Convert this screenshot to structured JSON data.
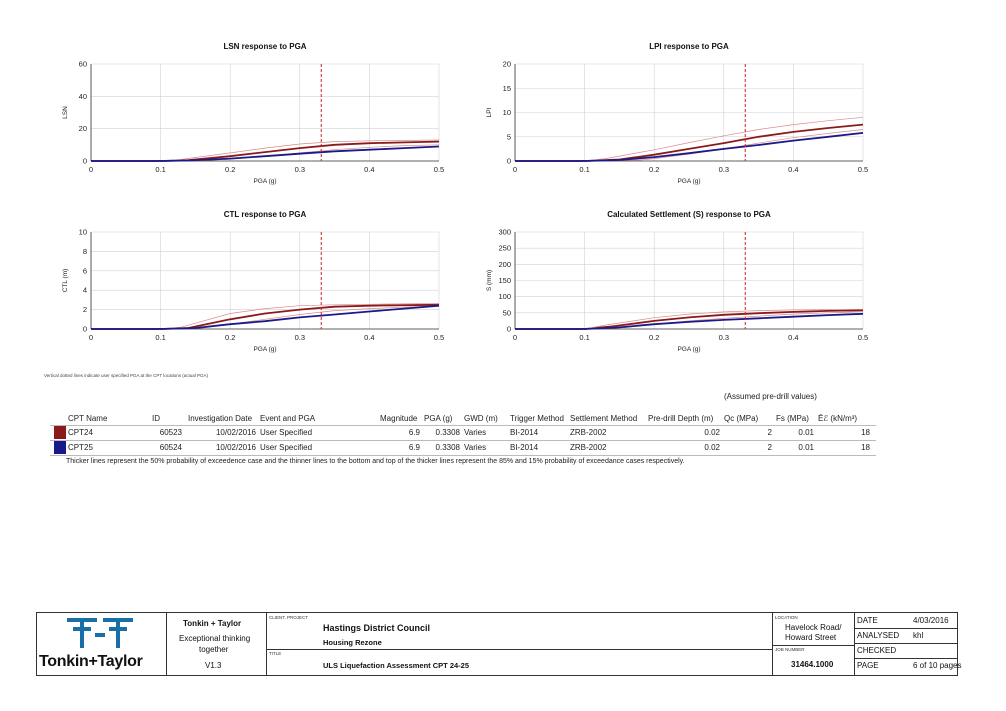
{
  "chart_data": [
    {
      "type": "line",
      "title": "LSN response to PGA",
      "xlabel": "PGA (g)",
      "ylabel": "LSN",
      "xlim": [
        0,
        0.5
      ],
      "ylim": [
        0,
        60
      ],
      "xticks": [
        "0",
        "0.1",
        "0.2",
        "0.3",
        "0.4",
        "0.5"
      ],
      "yticks": [
        "0",
        "20",
        "40",
        "60"
      ],
      "ref_x": 0.3308,
      "series": [
        {
          "color": "#8b1a1a",
          "width": 1.8,
          "x": [
            0,
            0.1,
            0.14,
            0.2,
            0.25,
            0.3,
            0.35,
            0.4,
            0.45,
            0.5
          ],
          "y": [
            0,
            0,
            0.5,
            3,
            5.5,
            8,
            10,
            11,
            11.5,
            12
          ]
        },
        {
          "color": "#d88a8a",
          "width": 0.7,
          "x": [
            0,
            0.1,
            0.13,
            0.2,
            0.25,
            0.3,
            0.35,
            0.4,
            0.45,
            0.5
          ],
          "y": [
            0,
            0,
            1,
            5,
            8,
            10.5,
            12,
            12.5,
            12.7,
            13
          ]
        },
        {
          "color": "#d88a8a",
          "width": 0.7,
          "x": [
            0,
            0.1,
            0.16,
            0.2,
            0.25,
            0.3,
            0.35,
            0.4,
            0.45,
            0.5
          ],
          "y": [
            0,
            0,
            0.3,
            1.2,
            3,
            5,
            7,
            8.5,
            9.5,
            10
          ]
        },
        {
          "color": "#1a1a8b",
          "width": 1.8,
          "x": [
            0,
            0.1,
            0.14,
            0.2,
            0.25,
            0.3,
            0.35,
            0.4,
            0.45,
            0.5
          ],
          "y": [
            0,
            0,
            0.3,
            1.5,
            3,
            4.5,
            6,
            7,
            8,
            9
          ]
        }
      ]
    },
    {
      "type": "line",
      "title": "LPI response to PGA",
      "xlabel": "PGA (g)",
      "ylabel": "LPI",
      "xlim": [
        0,
        0.5
      ],
      "ylim": [
        0,
        20
      ],
      "xticks": [
        "0",
        "0.1",
        "0.2",
        "0.3",
        "0.4",
        "0.5"
      ],
      "yticks": [
        "0",
        "5",
        "10",
        "15",
        "20"
      ],
      "ref_x": 0.3308,
      "series": [
        {
          "color": "#8b1a1a",
          "width": 1.8,
          "x": [
            0,
            0.1,
            0.15,
            0.2,
            0.25,
            0.3,
            0.35,
            0.4,
            0.45,
            0.5
          ],
          "y": [
            0,
            0,
            0.3,
            1.3,
            2.5,
            3.7,
            5,
            6,
            6.8,
            7.5
          ]
        },
        {
          "color": "#d88a8a",
          "width": 0.7,
          "x": [
            0,
            0.1,
            0.13,
            0.2,
            0.25,
            0.3,
            0.35,
            0.4,
            0.45,
            0.5
          ],
          "y": [
            0,
            0,
            0.5,
            2.3,
            3.8,
            5.2,
            6.5,
            7.5,
            8.3,
            9
          ]
        },
        {
          "color": "#d88a8a",
          "width": 0.7,
          "x": [
            0,
            0.1,
            0.18,
            0.2,
            0.25,
            0.3,
            0.35,
            0.4,
            0.45,
            0.5
          ],
          "y": [
            0,
            0,
            0.2,
            0.5,
            1.4,
            2.5,
            3.7,
            4.8,
            5.7,
            6.5
          ]
        },
        {
          "color": "#1a1a8b",
          "width": 1.8,
          "x": [
            0,
            0.1,
            0.15,
            0.2,
            0.25,
            0.3,
            0.35,
            0.4,
            0.45,
            0.5
          ],
          "y": [
            0,
            0,
            0.2,
            0.8,
            1.6,
            2.5,
            3.3,
            4.2,
            5,
            5.8
          ]
        }
      ]
    },
    {
      "type": "line",
      "title": "CTL response to PGA",
      "xlabel": "PGA (g)",
      "ylabel": "CTL (m)",
      "xlim": [
        0,
        0.5
      ],
      "ylim": [
        0,
        10
      ],
      "xticks": [
        "0",
        "0.1",
        "0.2",
        "0.3",
        "0.4",
        "0.5"
      ],
      "yticks": [
        "0",
        "2",
        "4",
        "6",
        "8",
        "10"
      ],
      "ref_x": 0.3308,
      "series": [
        {
          "color": "#8b1a1a",
          "width": 1.8,
          "x": [
            0,
            0.1,
            0.14,
            0.2,
            0.25,
            0.3,
            0.35,
            0.4,
            0.45,
            0.5
          ],
          "y": [
            0,
            0,
            0.1,
            1,
            1.6,
            2,
            2.3,
            2.4,
            2.45,
            2.5
          ]
        },
        {
          "color": "#d88a8a",
          "width": 0.7,
          "x": [
            0,
            0.1,
            0.13,
            0.2,
            0.25,
            0.3,
            0.35,
            0.4,
            0.45,
            0.5
          ],
          "y": [
            0,
            0,
            0.2,
            1.6,
            2.1,
            2.4,
            2.5,
            2.55,
            2.6,
            2.65
          ]
        },
        {
          "color": "#d88a8a",
          "width": 0.7,
          "x": [
            0,
            0.1,
            0.16,
            0.2,
            0.25,
            0.3,
            0.35,
            0.4,
            0.45,
            0.5
          ],
          "y": [
            0,
            0,
            0.1,
            0.5,
            1,
            1.5,
            1.9,
            2.1,
            2.25,
            2.4
          ]
        },
        {
          "color": "#1a1a8b",
          "width": 1.8,
          "x": [
            0,
            0.1,
            0.15,
            0.2,
            0.25,
            0.3,
            0.35,
            0.4,
            0.45,
            0.5
          ],
          "y": [
            0,
            0,
            0.1,
            0.5,
            0.8,
            1.2,
            1.5,
            1.8,
            2.1,
            2.4
          ]
        }
      ]
    },
    {
      "type": "line",
      "title": "Calculated Settlement (S) response to PGA",
      "xlabel": "PGA (g)",
      "ylabel": "S (mm)",
      "xlim": [
        0,
        0.5
      ],
      "ylim": [
        0,
        300
      ],
      "xticks": [
        "0",
        "0.1",
        "0.2",
        "0.3",
        "0.4",
        "0.5"
      ],
      "yticks": [
        "0",
        "50",
        "100",
        "150",
        "200",
        "250",
        "300"
      ],
      "ref_x": 0.3308,
      "series": [
        {
          "color": "#8b1a1a",
          "width": 1.8,
          "x": [
            0,
            0.1,
            0.14,
            0.2,
            0.25,
            0.3,
            0.35,
            0.4,
            0.45,
            0.5
          ],
          "y": [
            0,
            0,
            8,
            25,
            36,
            44,
            49,
            53,
            56,
            58
          ]
        },
        {
          "color": "#d88a8a",
          "width": 0.7,
          "x": [
            0,
            0.1,
            0.13,
            0.2,
            0.25,
            0.3,
            0.35,
            0.4,
            0.45,
            0.5
          ],
          "y": [
            0,
            0,
            12,
            35,
            46,
            53,
            57,
            59,
            60,
            61
          ]
        },
        {
          "color": "#d88a8a",
          "width": 0.7,
          "x": [
            0,
            0.1,
            0.16,
            0.2,
            0.25,
            0.3,
            0.35,
            0.4,
            0.45,
            0.5
          ],
          "y": [
            0,
            0,
            5,
            15,
            25,
            33,
            40,
            46,
            50,
            54
          ]
        },
        {
          "color": "#1a1a8b",
          "width": 1.8,
          "x": [
            0,
            0.1,
            0.15,
            0.2,
            0.25,
            0.3,
            0.35,
            0.4,
            0.45,
            0.5
          ],
          "y": [
            0,
            0,
            5,
            15,
            22,
            28,
            33,
            38,
            43,
            47
          ]
        }
      ]
    }
  ],
  "note": "Vertical dotted lines indicate user specified PGA at the CPT locations (actual PGA)",
  "table": {
    "headers": {
      "cpt_name": "CPT Name",
      "id": "ID",
      "investigation_date": "Investigation Date",
      "event": "Event and PGA",
      "magnitude": "Magnitude",
      "pga": "PGA (g)",
      "gwd": "GWD (m)",
      "trigger": "Trigger Method",
      "settlement": "Settlement Method",
      "predrill": "Pre-drill Depth (m)",
      "assumed_note": "(Assumed pre-drill values)",
      "qc": "Qc (MPa)",
      "fs": "Fs (MPa)",
      "ee": "Ēℰ (kN/m³)"
    },
    "rows": [
      {
        "swatch": "#8b1a1a",
        "cpt_name": "CPT24",
        "id": "60523",
        "investigation_date": "10/02/2016",
        "event": "User Specified",
        "magnitude": "6.9",
        "pga": "0.3308",
        "gwd": "Varies",
        "trigger": "BI-2014",
        "settlement": "ZRB-2002",
        "predrill": "0.02",
        "qc": "2",
        "fs": "0.01",
        "ee": "18"
      },
      {
        "swatch": "#1a1a8b",
        "cpt_name": "CPT25",
        "id": "60524",
        "investigation_date": "10/02/2016",
        "event": "User Specified",
        "magnitude": "6.9",
        "pga": "0.3308",
        "gwd": "Varies",
        "trigger": "BI-2014",
        "settlement": "ZRB-2002",
        "predrill": "0.02",
        "qc": "2",
        "fs": "0.01",
        "ee": "18"
      }
    ],
    "footnote": "Thicker lines represent the 50% probability of exceedence case and the thinner lines to the bottom and top of the thicker lines represent the 85% and 15% probability of exceedance cases respectively."
  },
  "title_block": {
    "logo_text": "Tonkin+Taylor",
    "logo_color": "#1a6fa8",
    "company": "Tonkin + Taylor",
    "tagline_1": "Exceptional thinking",
    "tagline_2": "together",
    "version": "V1.3",
    "client_project_label": "CLIENT, PROJECT",
    "client": "Hastings District Council",
    "project": "Housing Rezone",
    "title_label": "TITLE",
    "title": "ULS Liquefaction Assessment CPT 24-25",
    "location_label": "LOCATION",
    "location_1": "Havelock Road/",
    "location_2": "Howard Street",
    "job_label": "JOB NUMBER",
    "job_number": "31464.1000",
    "date_label": "DATE",
    "date": "4/03/2016",
    "analysed_label": "ANALYSED",
    "analysed": "khl",
    "checked_label": "CHECKED",
    "checked": "",
    "page_label": "PAGE",
    "page": "6 of 10 pages"
  }
}
